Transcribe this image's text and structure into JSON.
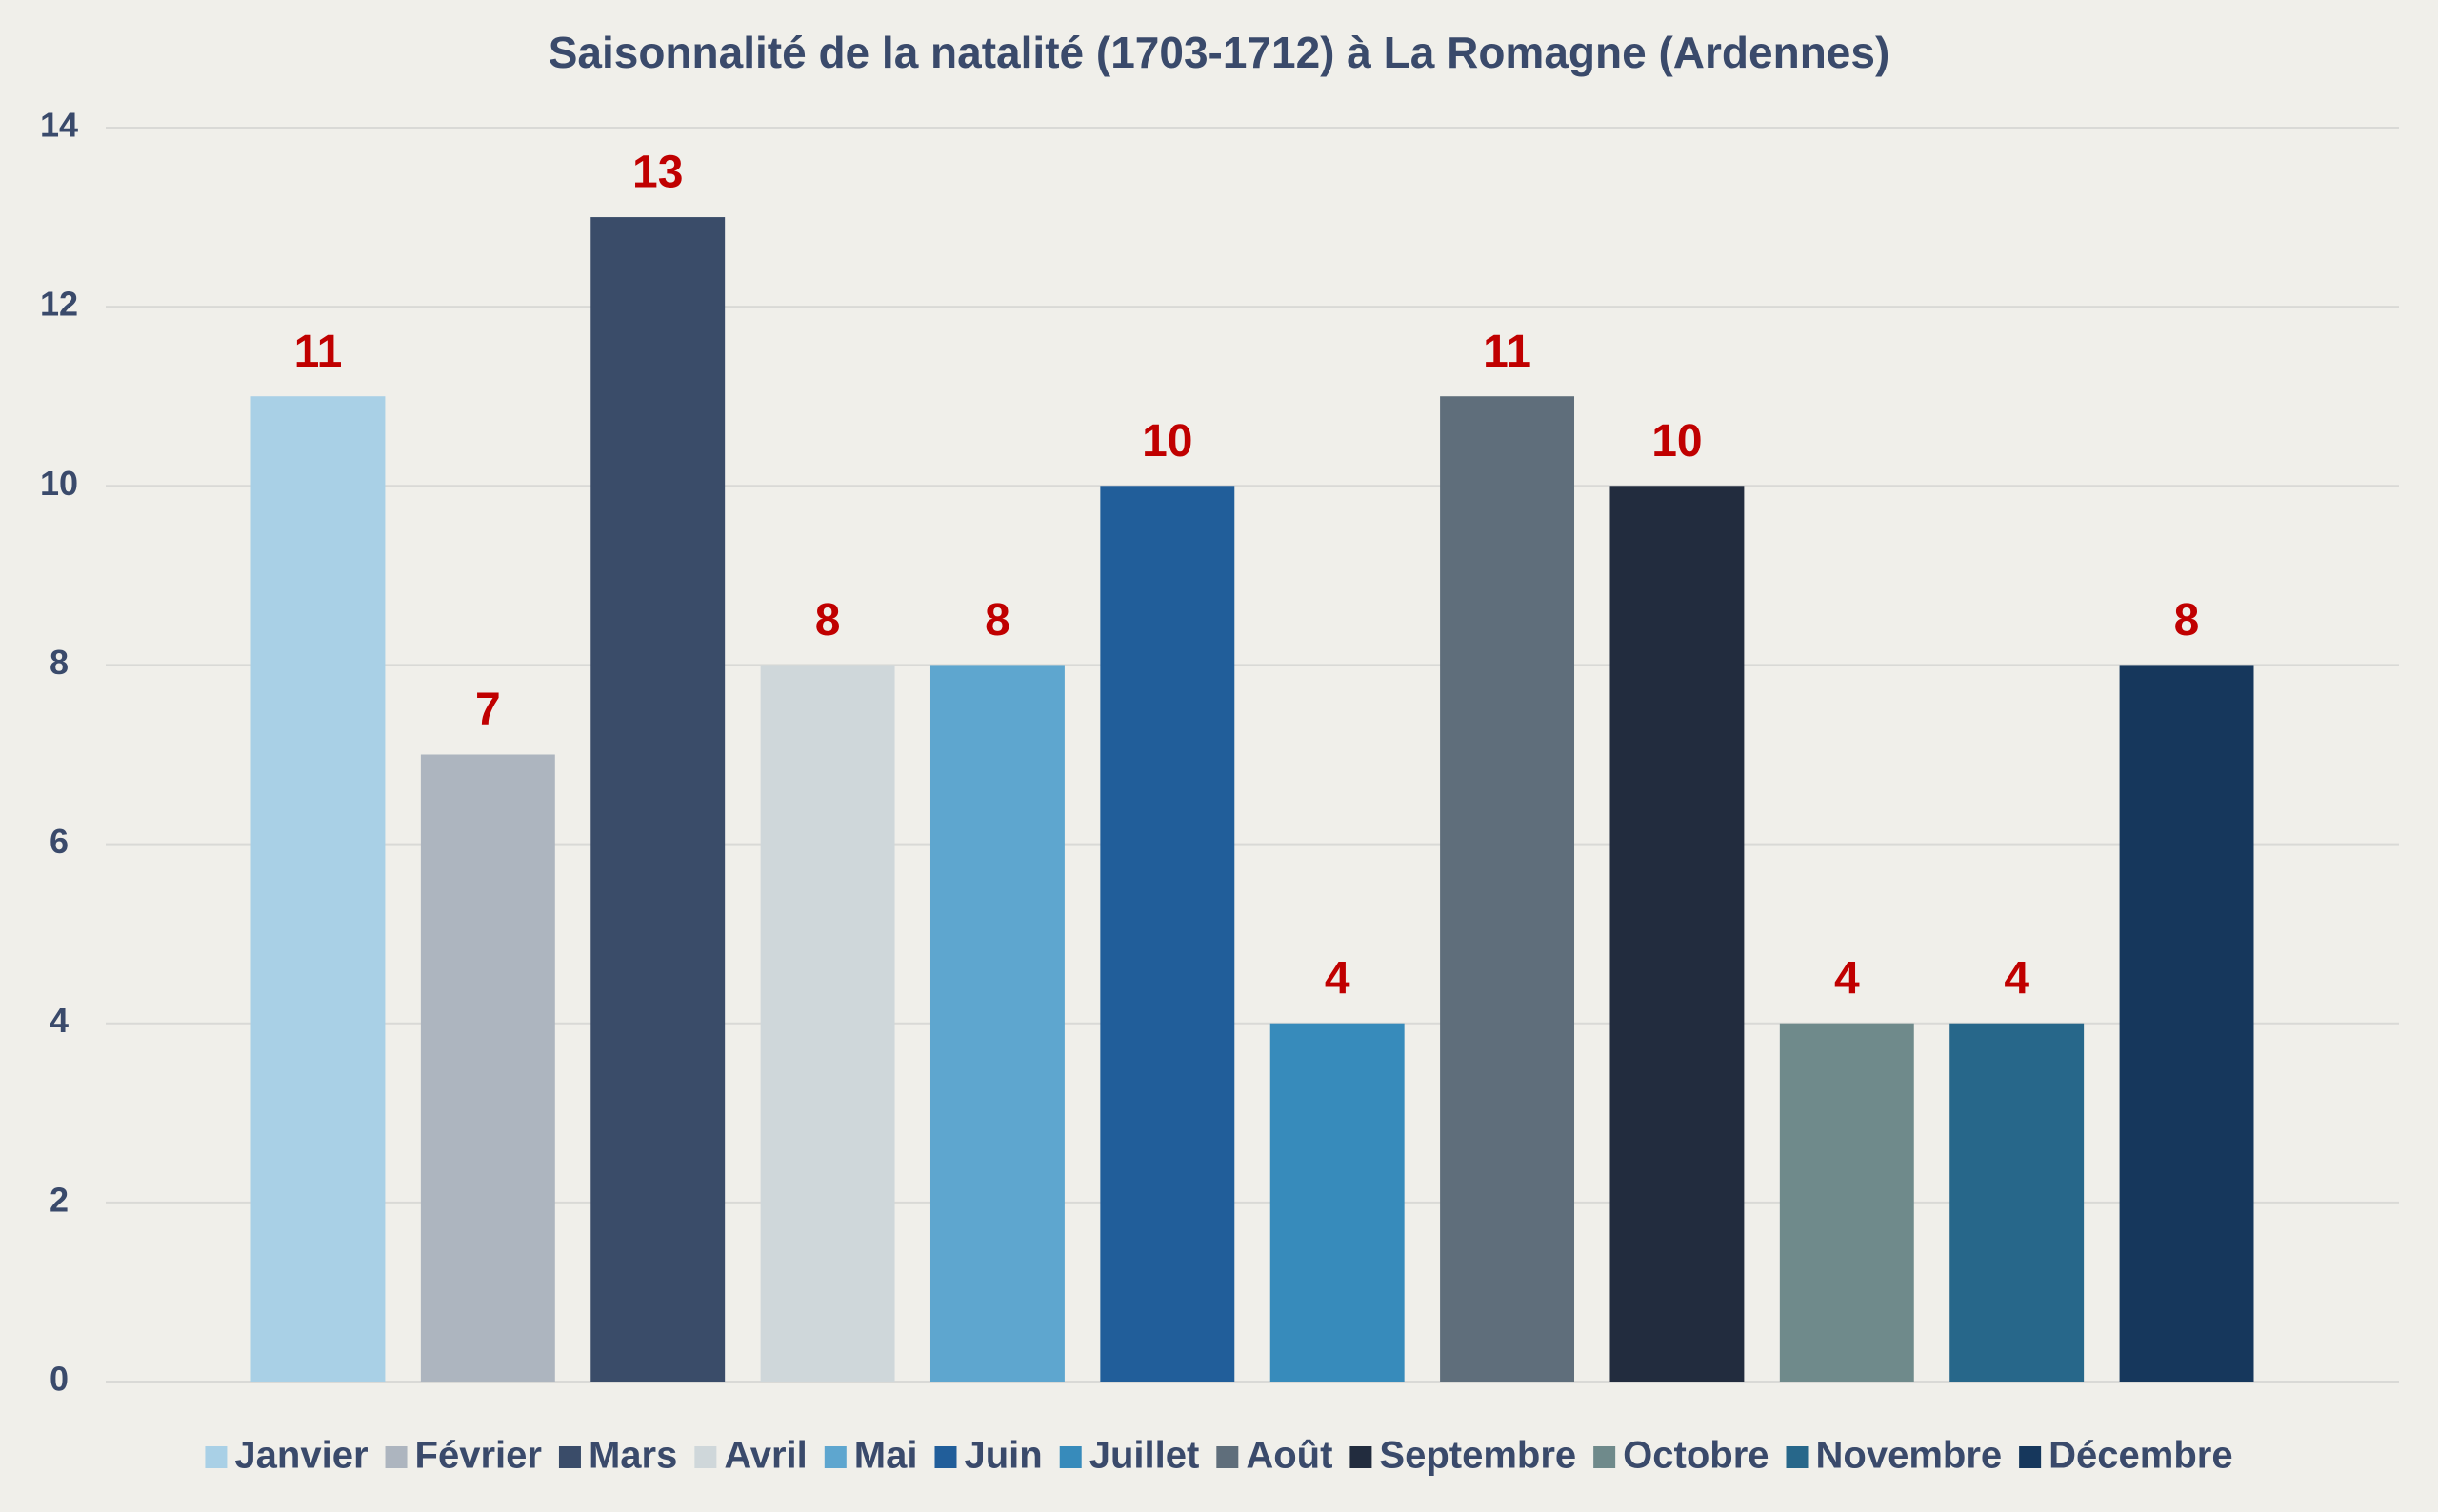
{
  "chart_data": {
    "type": "bar",
    "title": "Saisonnalité de la natalité (1703-1712) à La Romagne (Ardennes)",
    "series": [
      {
        "name": "Janvier",
        "color": "#a9d0e6",
        "values": [
          11
        ]
      },
      {
        "name": "Février",
        "color": "#adb5bf",
        "values": [
          7
        ]
      },
      {
        "name": "Mars",
        "color": "#3a4c69",
        "values": [
          13
        ]
      },
      {
        "name": "Avril",
        "color": "#cfd7da",
        "values": [
          8
        ]
      },
      {
        "name": "Mai",
        "color": "#5ea6cf",
        "values": [
          8
        ]
      },
      {
        "name": "Juin",
        "color": "#215e9a",
        "values": [
          10
        ]
      },
      {
        "name": "Juillet",
        "color": "#378bbb",
        "values": [
          4
        ]
      },
      {
        "name": "Août",
        "color": "#5f6e7b",
        "values": [
          11
        ]
      },
      {
        "name": "Septembre",
        "color": "#222c3e",
        "values": [
          10
        ]
      },
      {
        "name": "Octobre",
        "color": "#6f8a8b",
        "values": [
          4
        ]
      },
      {
        "name": "Novembre",
        "color": "#27678a",
        "values": [
          4
        ]
      },
      {
        "name": "Décembre",
        "color": "#16375c",
        "values": [
          8
        ]
      }
    ],
    "ylim": [
      0,
      14
    ],
    "yticks": [
      0,
      2,
      4,
      6,
      8,
      10,
      12,
      14
    ],
    "grid": true,
    "legend": "bottom"
  }
}
